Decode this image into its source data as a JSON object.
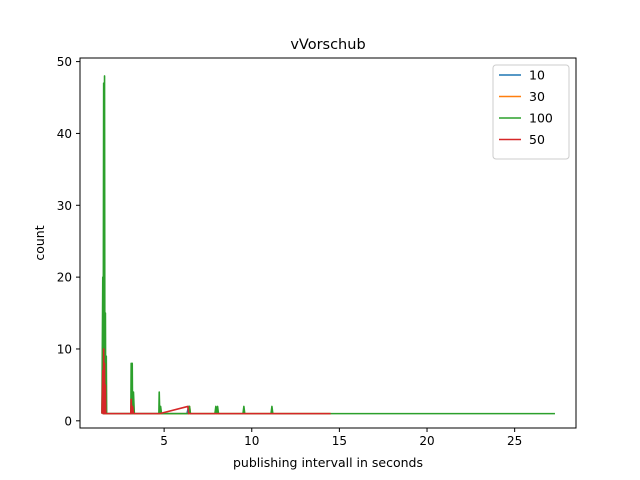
{
  "chart_data": {
    "type": "line",
    "title": "vVorschub",
    "xlabel": "publishing intervall in seconds",
    "ylabel": "count",
    "xlim": [
      0.2,
      28.5
    ],
    "ylim": [
      -1,
      50.5
    ],
    "xticks": [
      5,
      10,
      15,
      20,
      25
    ],
    "yticks": [
      0,
      10,
      20,
      30,
      40,
      50
    ],
    "legend_position": "top-right",
    "grid": false,
    "series": [
      {
        "name": "10",
        "color": "#1f77b4",
        "points": [
          [
            1.5,
            1
          ],
          [
            1.55,
            4
          ],
          [
            1.6,
            1
          ],
          [
            1.65,
            9
          ],
          [
            1.7,
            1
          ],
          [
            3.1,
            1
          ],
          [
            3.15,
            3
          ],
          [
            3.2,
            1
          ],
          [
            4.7,
            1
          ],
          [
            6.3,
            1
          ],
          [
            6.4,
            2
          ],
          [
            6.45,
            1
          ]
        ]
      },
      {
        "name": "30",
        "color": "#ff7f0e",
        "points": [
          [
            1.5,
            1
          ],
          [
            1.55,
            6
          ],
          [
            1.6,
            1
          ],
          [
            1.65,
            8
          ],
          [
            1.7,
            1
          ],
          [
            3.1,
            1
          ],
          [
            3.15,
            2
          ],
          [
            3.2,
            1
          ],
          [
            4.75,
            1
          ],
          [
            6.4,
            1
          ],
          [
            6.45,
            2
          ],
          [
            6.5,
            1
          ],
          [
            14.5,
            1
          ]
        ]
      },
      {
        "name": "100",
        "color": "#2ca02c",
        "points": [
          [
            1.45,
            1
          ],
          [
            1.5,
            20
          ],
          [
            1.52,
            1
          ],
          [
            1.55,
            47
          ],
          [
            1.57,
            1
          ],
          [
            1.6,
            48
          ],
          [
            1.62,
            1
          ],
          [
            1.65,
            15
          ],
          [
            1.67,
            1
          ],
          [
            1.7,
            9
          ],
          [
            1.72,
            1
          ],
          [
            3.1,
            1
          ],
          [
            3.12,
            8
          ],
          [
            3.15,
            1
          ],
          [
            3.18,
            8
          ],
          [
            3.2,
            1
          ],
          [
            3.25,
            4
          ],
          [
            3.3,
            1
          ],
          [
            4.7,
            1
          ],
          [
            4.72,
            4
          ],
          [
            4.75,
            1
          ],
          [
            4.8,
            2
          ],
          [
            4.85,
            1
          ],
          [
            6.4,
            1
          ],
          [
            6.45,
            2
          ],
          [
            6.5,
            1
          ],
          [
            7.9,
            1
          ],
          [
            7.95,
            2
          ],
          [
            8.0,
            1
          ],
          [
            8.05,
            2
          ],
          [
            8.1,
            1
          ],
          [
            9.5,
            1
          ],
          [
            9.55,
            2
          ],
          [
            9.6,
            1
          ],
          [
            11.1,
            1
          ],
          [
            11.15,
            2
          ],
          [
            11.2,
            1
          ],
          [
            24.1,
            1
          ],
          [
            27.3,
            1
          ]
        ]
      },
      {
        "name": "50",
        "color": "#d62728",
        "points": [
          [
            1.45,
            1
          ],
          [
            1.5,
            7
          ],
          [
            1.52,
            1
          ],
          [
            1.55,
            10
          ],
          [
            1.57,
            1
          ],
          [
            1.6,
            8
          ],
          [
            1.62,
            1
          ],
          [
            1.65,
            5
          ],
          [
            1.67,
            1
          ],
          [
            3.1,
            1
          ],
          [
            3.12,
            3
          ],
          [
            3.15,
            1
          ],
          [
            3.2,
            2
          ],
          [
            3.25,
            1
          ],
          [
            4.75,
            1
          ],
          [
            6.35,
            2
          ],
          [
            6.4,
            1
          ],
          [
            14.5,
            1
          ]
        ]
      }
    ]
  }
}
